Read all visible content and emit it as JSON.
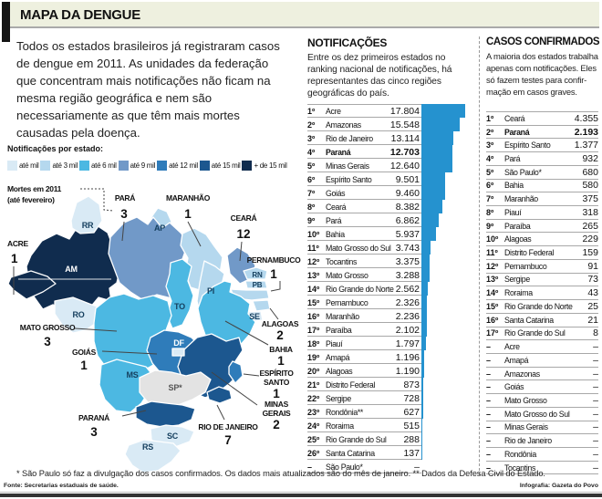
{
  "header": {
    "title": "MAPA DA DENGUE"
  },
  "intro": "Todos os estados brasileiros já registraram casos\nde dengue em 2011. As unidades da federação\nque concentram mais notificações não ficam na\nmesma região geográfica e nem são\nnecessariamente as que têm mais mortes\ncausadas pela doença.",
  "legend": {
    "title": "Notificações por estado:",
    "items": [
      {
        "label": "até mil",
        "color": "#d9eaf5"
      },
      {
        "label": "até 3 mil",
        "color": "#b5d8ee"
      },
      {
        "label": "até 6 mil",
        "color": "#4cb8e2"
      },
      {
        "label": "até 9 mil",
        "color": "#7199c8"
      },
      {
        "label": "até 12 mil",
        "color": "#2f7cba"
      },
      {
        "label": "até 15 mil",
        "color": "#1c578f"
      },
      {
        "label": "+ de 15 mil",
        "color": "#102c4e"
      }
    ],
    "no_data_color": "#e3e3e3"
  },
  "deaths_note": {
    "line1": "Mortes em 2011",
    "line2": "(até fevereiro)"
  },
  "map": {
    "states": {
      "RR": "c1",
      "AP": "c2",
      "AM": "c7",
      "AC": "c7",
      "PA": "c4",
      "MA": "c2",
      "PI": "c2",
      "CE": "c4",
      "RN": "c2",
      "PB": "c2",
      "PE": "c2",
      "AL": "c2",
      "SE": "c1",
      "BA": "c3",
      "TO": "c3",
      "RO": "c1",
      "MT": "c3",
      "GO": "c5",
      "DF": "c1",
      "MS": "c3",
      "MG": "c6",
      "ES": "c5",
      "RJ": "c6",
      "SP": "nodata",
      "PR": "c6",
      "SC": "c1",
      "RS": "c1"
    },
    "abbr_labels": {
      "RR": "RR",
      "AP": "AP",
      "AM": "AM",
      "RO": "RO",
      "PI": "PI",
      "TO": "TO",
      "RN": "RN",
      "PB": "PB",
      "SE": "SE",
      "DF": "DF",
      "MS": "MS",
      "SP": "SP*",
      "SC": "SC",
      "RS": "RS"
    },
    "callouts": {
      "para": {
        "name": "PARÁ",
        "deaths": "3"
      },
      "maranhao": {
        "name": "MARANHÃO",
        "deaths": "1"
      },
      "ceara": {
        "name": "CEARÁ",
        "deaths": "12"
      },
      "pernambuco": {
        "name": "PERNAMBUCO",
        "deaths": "1"
      },
      "acre": {
        "name": "ACRE",
        "deaths": "1"
      },
      "mato_grosso": {
        "name": "MATO GROSSO",
        "deaths": "3"
      },
      "goias": {
        "name": "GOIÁS",
        "deaths": "1"
      },
      "alagoas": {
        "name": "ALAGOAS",
        "deaths": "2"
      },
      "bahia": {
        "name": "BAHIA",
        "deaths": "1"
      },
      "espirito_santo": {
        "name1": "ESPÍRITO",
        "name2": "SANTO",
        "deaths": "1"
      },
      "minas_gerais": {
        "name1": "MINAS",
        "name2": "GERAIS",
        "deaths": "2"
      },
      "parana": {
        "name": "PARANÁ",
        "deaths": "3"
      },
      "rio_de_janeiro": {
        "name": "RIO DE JANEIRO",
        "deaths": "7"
      }
    }
  },
  "notifications": {
    "title": "NOTIFICAÇÕES",
    "subtitle": "Entre os dez primeiros estados no\nranking nacional de notificações, há\nrepresentantes das cinco regiões\ngeográficas do país.",
    "bar_color": "#2592cf",
    "max_value": 17804,
    "rows": [
      {
        "rank": "1º",
        "state": "Acre",
        "value": "17.804",
        "n": 17804
      },
      {
        "rank": "2º",
        "state": "Amazonas",
        "value": "15.548",
        "n": 15548
      },
      {
        "rank": "3º",
        "state": "Rio de Janeiro",
        "value": "13.114",
        "n": 13114
      },
      {
        "rank": "4º",
        "state": "Paraná",
        "value": "12.703",
        "n": 12703,
        "bold": true
      },
      {
        "rank": "5º",
        "state": "Minas Gerais",
        "value": "12.640",
        "n": 12640
      },
      {
        "rank": "6º",
        "state": "Espírito Santo",
        "value": "9.501",
        "n": 9501
      },
      {
        "rank": "7º",
        "state": "Goiás",
        "value": "9.460",
        "n": 9460
      },
      {
        "rank": "8º",
        "state": "Ceará",
        "value": "8.382",
        "n": 8382
      },
      {
        "rank": "9º",
        "state": "Pará",
        "value": "6.862",
        "n": 6862
      },
      {
        "rank": "10º",
        "state": "Bahia",
        "value": "5.937",
        "n": 5937
      },
      {
        "rank": "11º",
        "state": "Mato Grosso do Sul",
        "value": "3.743",
        "n": 3743
      },
      {
        "rank": "12º",
        "state": "Tocantins",
        "value": "3.375",
        "n": 3375
      },
      {
        "rank": "13º",
        "state": "Mato Grosso",
        "value": "3.288",
        "n": 3288
      },
      {
        "rank": "14º",
        "state": "Rio Grande do Norte",
        "value": "2.562",
        "n": 2562
      },
      {
        "rank": "15º",
        "state": "Pernambuco",
        "value": "2.326",
        "n": 2326
      },
      {
        "rank": "16º",
        "state": "Maranhão",
        "value": "2.236",
        "n": 2236
      },
      {
        "rank": "17º",
        "state": "Paraíba",
        "value": "2.102",
        "n": 2102
      },
      {
        "rank": "18º",
        "state": "Piauí",
        "value": "1.797",
        "n": 1797
      },
      {
        "rank": "19º",
        "state": "Amapá",
        "value": "1.196",
        "n": 1196
      },
      {
        "rank": "20º",
        "state": "Alagoas",
        "value": "1.190",
        "n": 1190
      },
      {
        "rank": "21º",
        "state": "Distrito Federal",
        "value": "873",
        "n": 873
      },
      {
        "rank": "22º",
        "state": "Sergipe",
        "value": "728",
        "n": 728
      },
      {
        "rank": "23º",
        "state": "Rondônia**",
        "value": "627",
        "n": 627
      },
      {
        "rank": "24º",
        "state": "Roraima",
        "value": "515",
        "n": 515
      },
      {
        "rank": "25º",
        "state": "Rio Grande do Sul",
        "value": "288",
        "n": 288
      },
      {
        "rank": "26º",
        "state": "Santa Catarina",
        "value": "137",
        "n": 137
      },
      {
        "rank": "–",
        "state": "São Paulo*",
        "value": "–",
        "n": 0
      }
    ]
  },
  "confirmed": {
    "title": "CASOS CONFIRMADOS",
    "subtitle": "A maioria dos estados trabalha\napenas com notificações. Eles\nsó fazem testes para confir-\nmação em casos graves.",
    "rows": [
      {
        "rank": "1º",
        "state": "Ceará",
        "value": "4.355",
        "n": 4355
      },
      {
        "rank": "2º",
        "state": "Paraná",
        "value": "2.193",
        "n": 2193,
        "bold": true
      },
      {
        "rank": "3º",
        "state": "Espírito Santo",
        "value": "1.377",
        "n": 1377
      },
      {
        "rank": "4º",
        "state": "Pará",
        "value": "932",
        "n": 932
      },
      {
        "rank": "5º",
        "state": "São Paulo*",
        "value": "680",
        "n": 680
      },
      {
        "rank": "6º",
        "state": "Bahia",
        "value": "580",
        "n": 580
      },
      {
        "rank": "7º",
        "state": "Maranhão",
        "value": "375",
        "n": 375
      },
      {
        "rank": "8º",
        "state": "Piauí",
        "value": "318",
        "n": 318
      },
      {
        "rank": "9º",
        "state": "Paraíba",
        "value": "265",
        "n": 265
      },
      {
        "rank": "10º",
        "state": "Alagoas",
        "value": "229",
        "n": 229
      },
      {
        "rank": "11º",
        "state": "Distrito Federal",
        "value": "159",
        "n": 159
      },
      {
        "rank": "12º",
        "state": "Pernambuco",
        "value": "91",
        "n": 91
      },
      {
        "rank": "13º",
        "state": "Sergipe",
        "value": "73",
        "n": 73
      },
      {
        "rank": "14º",
        "state": "Roraima",
        "value": "43",
        "n": 43
      },
      {
        "rank": "15º",
        "state": "Rio Grande do Norte",
        "value": "25",
        "n": 25
      },
      {
        "rank": "16º",
        "state": "Santa Catarina",
        "value": "21",
        "n": 21
      },
      {
        "rank": "17º",
        "state": "Rio Grande do Sul",
        "value": "8",
        "n": 8
      },
      {
        "rank": "–",
        "state": "Acre",
        "value": "–",
        "n": null
      },
      {
        "rank": "–",
        "state": "Amapá",
        "value": "–",
        "n": null
      },
      {
        "rank": "–",
        "state": "Amazonas",
        "value": "–",
        "n": null
      },
      {
        "rank": "–",
        "state": "Goiás",
        "value": "–",
        "n": null
      },
      {
        "rank": "–",
        "state": "Mato Grosso",
        "value": "–",
        "n": null
      },
      {
        "rank": "–",
        "state": "Mato Grosso do Sul",
        "value": "–",
        "n": null
      },
      {
        "rank": "–",
        "state": "Minas Gerais",
        "value": "–",
        "n": null
      },
      {
        "rank": "–",
        "state": "Rio de Janeiro",
        "value": "–",
        "n": null
      },
      {
        "rank": "–",
        "state": "Rondônia",
        "value": "–",
        "n": null
      },
      {
        "rank": "–",
        "state": "Tocantins",
        "value": "–",
        "n": null
      }
    ]
  },
  "footnotes": "* São Paulo só faz a divulgação dos casos confirmados. Os dados mais atualizados são do mês de janeiro. ** Dados da Defesa Civil do Estado.",
  "source": "Fonte: Secretarias estaduais de saúde.",
  "credit": "Infografia: Gazeta do Povo",
  "chart_data": [
    {
      "type": "bar",
      "orientation": "horizontal",
      "title": "NOTIFICAÇÕES",
      "categories": [
        "Acre",
        "Amazonas",
        "Rio de Janeiro",
        "Paraná",
        "Minas Gerais",
        "Espírito Santo",
        "Goiás",
        "Ceará",
        "Pará",
        "Bahia",
        "Mato Grosso do Sul",
        "Tocantins",
        "Mato Grosso",
        "Rio Grande do Norte",
        "Pernambuco",
        "Maranhão",
        "Paraíba",
        "Piauí",
        "Amapá",
        "Alagoas",
        "Distrito Federal",
        "Sergipe",
        "Rondônia",
        "Roraima",
        "Rio Grande do Sul",
        "Santa Catarina",
        "São Paulo"
      ],
      "values": [
        17804,
        15548,
        13114,
        12703,
        12640,
        9501,
        9460,
        8382,
        6862,
        5937,
        3743,
        3375,
        3288,
        2562,
        2326,
        2236,
        2102,
        1797,
        1196,
        1190,
        873,
        728,
        627,
        515,
        288,
        137,
        null
      ],
      "xlim": [
        0,
        17804
      ],
      "legend_position": "none"
    },
    {
      "type": "table",
      "title": "CASOS CONFIRMADOS",
      "categories": [
        "Ceará",
        "Paraná",
        "Espírito Santo",
        "Pará",
        "São Paulo",
        "Bahia",
        "Maranhão",
        "Piauí",
        "Paraíba",
        "Alagoas",
        "Distrito Federal",
        "Pernambuco",
        "Sergipe",
        "Roraima",
        "Rio Grande do Norte",
        "Santa Catarina",
        "Rio Grande do Sul",
        "Acre",
        "Amapá",
        "Amazonas",
        "Goiás",
        "Mato Grosso",
        "Mato Grosso do Sul",
        "Minas Gerais",
        "Rio de Janeiro",
        "Rondônia",
        "Tocantins"
      ],
      "values": [
        4355,
        2193,
        1377,
        932,
        680,
        580,
        375,
        318,
        265,
        229,
        159,
        91,
        73,
        43,
        25,
        21,
        8,
        null,
        null,
        null,
        null,
        null,
        null,
        null,
        null,
        null,
        null
      ]
    },
    {
      "type": "heatmap",
      "title": "Mortes em 2011 (até fevereiro)",
      "categories": [
        "Pará",
        "Maranhão",
        "Ceará",
        "Pernambuco",
        "Acre",
        "Mato Grosso",
        "Goiás",
        "Alagoas",
        "Bahia",
        "Espírito Santo",
        "Minas Gerais",
        "Paraná",
        "Rio de Janeiro"
      ],
      "values": [
        3,
        1,
        12,
        1,
        1,
        3,
        1,
        2,
        1,
        1,
        2,
        3,
        7
      ],
      "bins": [
        "até mil",
        "até 3 mil",
        "até 6 mil",
        "até 9 mil",
        "até 12 mil",
        "até 15 mil",
        "+ de 15 mil"
      ]
    }
  ]
}
